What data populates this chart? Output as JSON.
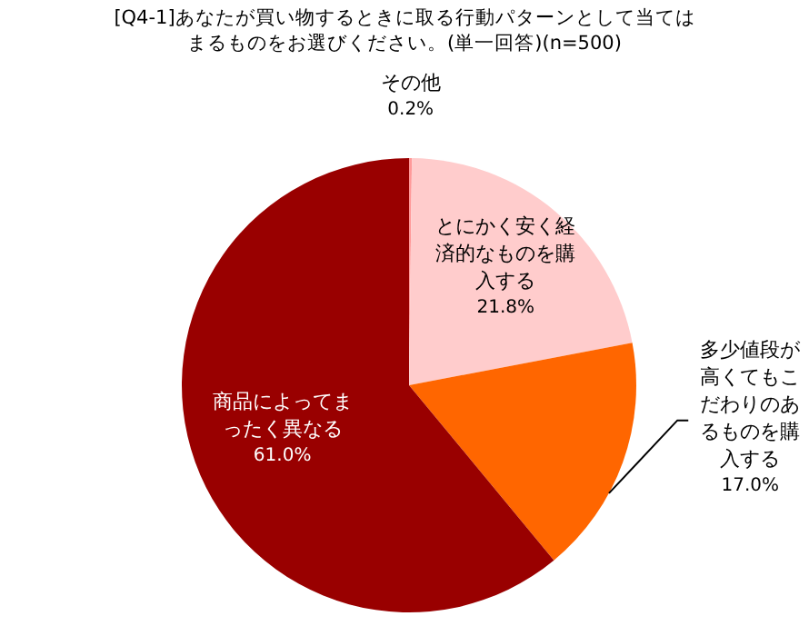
{
  "chart_data": {
    "type": "pie",
    "title": "[Q4-1]あなたが買い物するときに取る行動パターンとして当てはまるものをお選びください。(単一回答)(n=500)",
    "categories": [
      "その他",
      "とにかく安く経済的なものを購入する",
      "多少値段が高くてもこだわりのあるものを購入する",
      "商品によってまったく異なる"
    ],
    "values": [
      0.2,
      21.8,
      17.0,
      61.0
    ],
    "colors": [
      "#ff9999",
      "#ffcccc",
      "#ff6600",
      "#990000"
    ],
    "value_labels": [
      "0.2%",
      "21.8%",
      "17.0%",
      "61.0%"
    ]
  }
}
